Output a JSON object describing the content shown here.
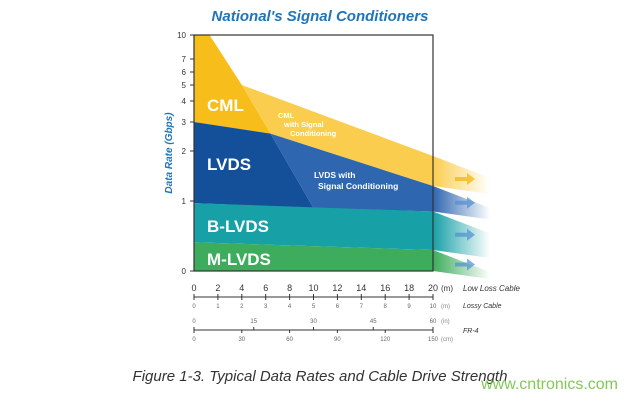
{
  "chart_data": {
    "type": "area",
    "title": "National's Signal Conditioners",
    "caption": "Figure 1-3. Typical Data Rates and Cable Drive Strength",
    "ylabel": "Data Rate (Gbps)",
    "yticks": [
      0,
      1,
      2,
      3,
      4,
      5,
      6,
      7,
      10
    ],
    "ylim": [
      0,
      10
    ],
    "x_axes": [
      {
        "name": "Low Loss Cable",
        "unit": "(m)",
        "ticks": [
          0,
          2,
          4,
          6,
          8,
          10,
          12,
          14,
          16,
          18,
          20
        ]
      },
      {
        "name": "Lossy Cable",
        "unit": "(m)",
        "ticks": [
          0,
          1,
          2,
          3,
          4,
          5,
          6,
          7,
          8,
          9,
          10
        ]
      },
      {
        "name": "FR-4",
        "unit_top": "(in)",
        "ticks_top": [
          0,
          15,
          30,
          45,
          60
        ],
        "unit_bottom": "(cm)",
        "ticks_bottom": [
          0,
          30,
          60,
          90,
          120,
          150
        ]
      }
    ],
    "xlim": [
      0,
      20
    ],
    "series": [
      {
        "name": "CML",
        "color": "#f7bd1a",
        "points": [
          [
            0,
            10
          ],
          [
            1.3,
            10
          ],
          [
            4,
            5
          ],
          [
            6.4,
            2.6
          ],
          [
            0,
            3
          ]
        ]
      },
      {
        "name": "CML with Signal Conditioning",
        "color": "#fbcd4f",
        "points": [
          [
            4,
            5
          ],
          [
            20,
            1.9
          ],
          [
            20,
            1.3
          ],
          [
            6.4,
            2.6
          ]
        ]
      },
      {
        "name": "LVDS",
        "color": "#14509a",
        "points": [
          [
            0,
            3
          ],
          [
            6.4,
            2.6
          ],
          [
            10,
            0.9
          ],
          [
            0,
            0.97
          ]
        ]
      },
      {
        "name": "LVDS with Signal Conditioning",
        "color": "#2f66b0",
        "points": [
          [
            6.4,
            2.6
          ],
          [
            20,
            1.3
          ],
          [
            20,
            0.85
          ],
          [
            10,
            0.9
          ]
        ]
      },
      {
        "name": "B-LVDS",
        "color": "#17a0a6",
        "points": [
          [
            0,
            0.97
          ],
          [
            20,
            0.85
          ],
          [
            20,
            0.3
          ],
          [
            0,
            0.41
          ]
        ]
      },
      {
        "name": "M-LVDS",
        "color": "#3dac5c",
        "points": [
          [
            0,
            0.41
          ],
          [
            20,
            0.3
          ],
          [
            20,
            0
          ],
          [
            0,
            0
          ]
        ]
      }
    ],
    "labels": {
      "cml": "CML",
      "cml_sc": [
        "CML",
        "with Signal",
        "Conditioning"
      ],
      "lvds": "LVDS",
      "lvds_sc": [
        "LVDS with",
        "Signal Conditioning"
      ],
      "blvds": "B-LVDS",
      "mlvds": "M-LVDS"
    }
  },
  "watermark": "www.cntronics.com"
}
